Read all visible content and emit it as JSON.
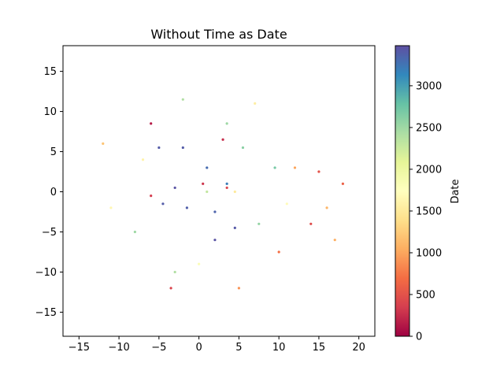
{
  "chart_data": {
    "type": "scatter",
    "title": "Without Time as Date",
    "xlabel": "",
    "ylabel": "",
    "xlim": [
      -17,
      22
    ],
    "ylim": [
      -18,
      18.2
    ],
    "x_ticks": [
      -15,
      -10,
      -5,
      0,
      5,
      10,
      15,
      20
    ],
    "x_tick_labels": [
      "−15",
      "−10",
      "−5",
      "0",
      "5",
      "10",
      "15",
      "20"
    ],
    "y_ticks": [
      15,
      10,
      5,
      0,
      -5,
      -10,
      -15
    ],
    "y_tick_labels": [
      "15",
      "10",
      "5",
      "0",
      "−5",
      "−10",
      "−15"
    ],
    "grid": false,
    "colormap": "Spectral",
    "colorbar": {
      "label": "Date",
      "range": [
        0,
        3480
      ],
      "ticks": [
        0,
        500,
        1000,
        1500,
        2000,
        2500,
        3000
      ],
      "tick_labels": [
        "0",
        "500",
        "1000",
        "1500",
        "2000",
        "2500",
        "3000"
      ]
    },
    "color_stops": [
      "#9e0142",
      "#d53e4f",
      "#f46d43",
      "#fdae61",
      "#fee08b",
      "#ffffbf",
      "#e6f598",
      "#abdda4",
      "#66c2a5",
      "#3288bd",
      "#5e4fa2"
    ],
    "points": [
      {
        "x": -5.0,
        "y": 5.5,
        "c": 3400
      },
      {
        "x": -2.0,
        "y": 5.5,
        "c": 3400
      },
      {
        "x": 1.0,
        "y": 3.0,
        "c": 3300
      },
      {
        "x": -3.0,
        "y": 0.5,
        "c": 3450
      },
      {
        "x": -4.5,
        "y": -1.5,
        "c": 3400
      },
      {
        "x": 2.0,
        "y": -2.5,
        "c": 3350
      },
      {
        "x": 4.5,
        "y": -4.5,
        "c": 3420
      },
      {
        "x": 2.0,
        "y": -6.0,
        "c": 3450
      },
      {
        "x": -1.5,
        "y": -2.0,
        "c": 3380
      },
      {
        "x": 3.5,
        "y": 1.0,
        "c": 3200
      },
      {
        "x": 5.5,
        "y": 5.5,
        "c": 2600
      },
      {
        "x": 3.5,
        "y": 8.5,
        "c": 2500
      },
      {
        "x": -2.0,
        "y": 11.5,
        "c": 2400
      },
      {
        "x": 9.5,
        "y": 3.0,
        "c": 2700
      },
      {
        "x": 1.0,
        "y": 0.0,
        "c": 2300
      },
      {
        "x": -8.0,
        "y": -5.0,
        "c": 2500
      },
      {
        "x": 7.5,
        "y": -4.0,
        "c": 2550
      },
      {
        "x": -3.0,
        "y": -10.0,
        "c": 2400
      },
      {
        "x": 3.5,
        "y": 0.5,
        "c": 400
      },
      {
        "x": 0.5,
        "y": 1.0,
        "c": 300
      },
      {
        "x": -6.0,
        "y": -0.5,
        "c": 350
      },
      {
        "x": 15.0,
        "y": 2.5,
        "c": 500
      },
      {
        "x": 18.0,
        "y": 1.0,
        "c": 600
      },
      {
        "x": 14.0,
        "y": -4.0,
        "c": 450
      },
      {
        "x": 3.0,
        "y": 6.5,
        "c": 250
      },
      {
        "x": 10.0,
        "y": -7.5,
        "c": 700
      },
      {
        "x": -6.0,
        "y": 8.5,
        "c": 150
      },
      {
        "x": -3.5,
        "y": -12.0,
        "c": 400
      },
      {
        "x": 4.5,
        "y": 0.0,
        "c": 1500
      },
      {
        "x": -7.0,
        "y": 4.0,
        "c": 1600
      },
      {
        "x": 11.0,
        "y": -1.5,
        "c": 1700
      },
      {
        "x": -11.0,
        "y": -2.0,
        "c": 1650
      },
      {
        "x": 0.0,
        "y": -9.0,
        "c": 1800
      },
      {
        "x": 7.0,
        "y": 11.0,
        "c": 1550
      },
      {
        "x": 16.0,
        "y": -2.0,
        "c": 1100
      },
      {
        "x": 12.0,
        "y": 3.0,
        "c": 1000
      },
      {
        "x": -12.0,
        "y": 6.0,
        "c": 1200
      },
      {
        "x": 17.0,
        "y": -6.0,
        "c": 1050
      },
      {
        "x": 5.0,
        "y": -12.0,
        "c": 900
      }
    ]
  }
}
